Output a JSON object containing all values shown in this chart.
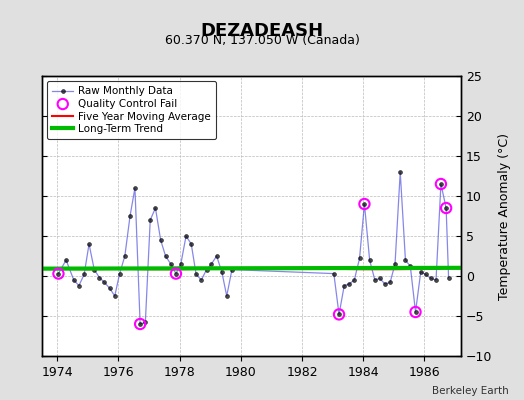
{
  "title": "DEZADEASH",
  "subtitle": "60.370 N, 137.050 W (Canada)",
  "ylabel": "Temperature Anomaly (°C)",
  "attribution": "Berkeley Earth",
  "xlim": [
    1973.5,
    1987.2
  ],
  "ylim": [
    -10,
    25
  ],
  "yticks": [
    -10,
    -5,
    0,
    5,
    10,
    15,
    20,
    25
  ],
  "xticks": [
    1974,
    1976,
    1978,
    1980,
    1982,
    1984,
    1986
  ],
  "background_color": "#e0e0e0",
  "plot_bg_color": "#ffffff",
  "raw_data": {
    "x": [
      1974.04,
      1974.29,
      1974.54,
      1974.71,
      1974.88,
      1975.04,
      1975.21,
      1975.38,
      1975.54,
      1975.71,
      1975.88,
      1976.04,
      1976.21,
      1976.38,
      1976.54,
      1976.71,
      1976.88,
      1977.04,
      1977.21,
      1977.38,
      1977.54,
      1977.71,
      1977.88,
      1978.04,
      1978.21,
      1978.38,
      1978.54,
      1978.71,
      1978.88,
      1979.04,
      1979.21,
      1979.38,
      1979.54,
      1979.71,
      1983.04,
      1983.21,
      1983.38,
      1983.54,
      1983.71,
      1983.88,
      1984.04,
      1984.21,
      1984.38,
      1984.54,
      1984.71,
      1984.88,
      1985.04,
      1985.21,
      1985.38,
      1985.54,
      1985.71,
      1985.88,
      1986.04,
      1986.21,
      1986.38,
      1986.54,
      1986.71,
      1986.79
    ],
    "y": [
      0.3,
      2.0,
      -0.5,
      -1.2,
      0.2,
      4.0,
      0.8,
      -0.2,
      -0.8,
      -1.5,
      -2.5,
      0.3,
      2.5,
      7.5,
      11.0,
      -6.0,
      -5.8,
      7.0,
      8.5,
      4.5,
      2.5,
      1.5,
      0.3,
      1.5,
      5.0,
      4.0,
      0.2,
      -0.5,
      0.8,
      1.5,
      2.5,
      0.5,
      -2.5,
      0.8,
      0.3,
      -4.8,
      -1.2,
      -1.0,
      -0.5,
      2.2,
      9.0,
      2.0,
      -0.5,
      -0.3,
      -1.0,
      -0.8,
      1.5,
      13.0,
      2.0,
      1.2,
      -4.5,
      0.5,
      0.2,
      -0.3,
      -0.5,
      11.5,
      8.5,
      -0.2
    ]
  },
  "qc_fail_points": {
    "x": [
      1974.04,
      1976.71,
      1977.88,
      1983.21,
      1984.04,
      1985.71,
      1986.54,
      1986.71
    ],
    "y": [
      0.3,
      -6.0,
      0.3,
      -4.8,
      9.0,
      -4.5,
      11.5,
      8.5
    ]
  },
  "moving_avg": {
    "x": [
      1974.0,
      1975.0,
      1976.0,
      1977.0,
      1978.0,
      1979.0,
      1983.0,
      1984.0,
      1985.0,
      1986.5
    ],
    "y": [
      0.9,
      0.85,
      0.9,
      0.85,
      0.85,
      0.9,
      0.9,
      0.85,
      0.85,
      0.9
    ]
  },
  "trend": {
    "x": [
      1973.5,
      1987.2
    ],
    "y": [
      0.92,
      1.02
    ]
  },
  "line_color": "#5555dd",
  "line_alpha": 0.7,
  "marker_color": "#000000",
  "qc_color": "#ff00ff",
  "moving_avg_color": "#ff0000",
  "trend_color": "#00bb00"
}
